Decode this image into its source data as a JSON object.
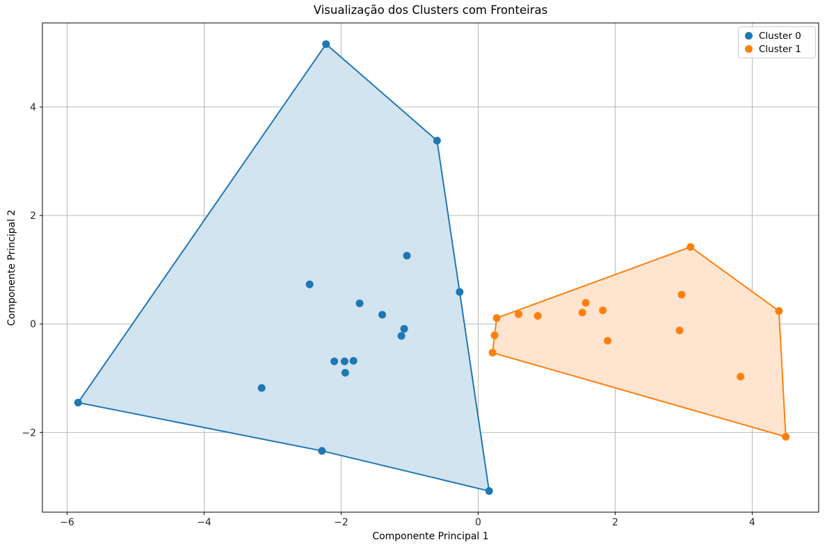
{
  "figure": {
    "background": "#ffffff",
    "grid_color": "#b0b0b0",
    "frame_color": "#000000",
    "tick_label_color": "#262626"
  },
  "chart_data": {
    "type": "scatter",
    "title": "Visualização dos Clusters com Fronteiras",
    "xlabel": "Componente Principal 1",
    "ylabel": "Componente Principal 2",
    "xlim": [
      -6.36,
      4.97
    ],
    "ylim": [
      -3.47,
      5.55
    ],
    "x_ticks": [
      -6,
      -4,
      -2,
      0,
      2,
      4
    ],
    "y_ticks": [
      -2,
      0,
      2,
      4
    ],
    "grid": true,
    "legend": {
      "position": "upper right",
      "entries": [
        "Cluster 0",
        "Cluster 1"
      ]
    },
    "series": [
      {
        "name": "Cluster 0",
        "color": "#1f77b4",
        "fill_color": "#d2e4f0",
        "points": [
          [
            -2.22,
            5.16
          ],
          [
            -0.6,
            3.38
          ],
          [
            -2.46,
            0.73
          ],
          [
            -1.04,
            1.26
          ],
          [
            -0.27,
            0.59
          ],
          [
            -1.73,
            0.38
          ],
          [
            -1.4,
            0.17
          ],
          [
            -1.08,
            -0.09
          ],
          [
            -1.12,
            -0.22
          ],
          [
            -2.1,
            -0.69
          ],
          [
            -1.95,
            -0.69
          ],
          [
            -1.82,
            -0.68
          ],
          [
            -1.94,
            -0.9
          ],
          [
            -3.16,
            -1.18
          ],
          [
            -5.84,
            -1.45
          ],
          [
            -2.28,
            -2.34
          ],
          [
            0.16,
            -3.08
          ]
        ],
        "hull": [
          [
            -2.22,
            5.16
          ],
          [
            -0.6,
            3.38
          ],
          [
            -0.27,
            0.59
          ],
          [
            0.16,
            -3.08
          ],
          [
            -2.28,
            -2.34
          ],
          [
            -5.84,
            -1.45
          ]
        ]
      },
      {
        "name": "Cluster 1",
        "color": "#ff7f0e",
        "fill_color": "#ffe5cf",
        "points": [
          [
            0.27,
            0.11
          ],
          [
            0.59,
            0.18
          ],
          [
            0.87,
            0.15
          ],
          [
            0.24,
            -0.21
          ],
          [
            0.21,
            -0.53
          ],
          [
            1.52,
            0.21
          ],
          [
            1.57,
            0.39
          ],
          [
            1.82,
            0.25
          ],
          [
            1.89,
            -0.31
          ],
          [
            2.94,
            -0.12
          ],
          [
            2.97,
            0.54
          ],
          [
            3.1,
            1.42
          ],
          [
            3.83,
            -0.97
          ],
          [
            4.39,
            0.24
          ],
          [
            4.49,
            -2.08
          ]
        ],
        "hull": [
          [
            0.27,
            0.11
          ],
          [
            3.1,
            1.42
          ],
          [
            4.39,
            0.24
          ],
          [
            4.49,
            -2.08
          ],
          [
            0.21,
            -0.53
          ],
          [
            0.24,
            -0.21
          ]
        ]
      }
    ]
  }
}
